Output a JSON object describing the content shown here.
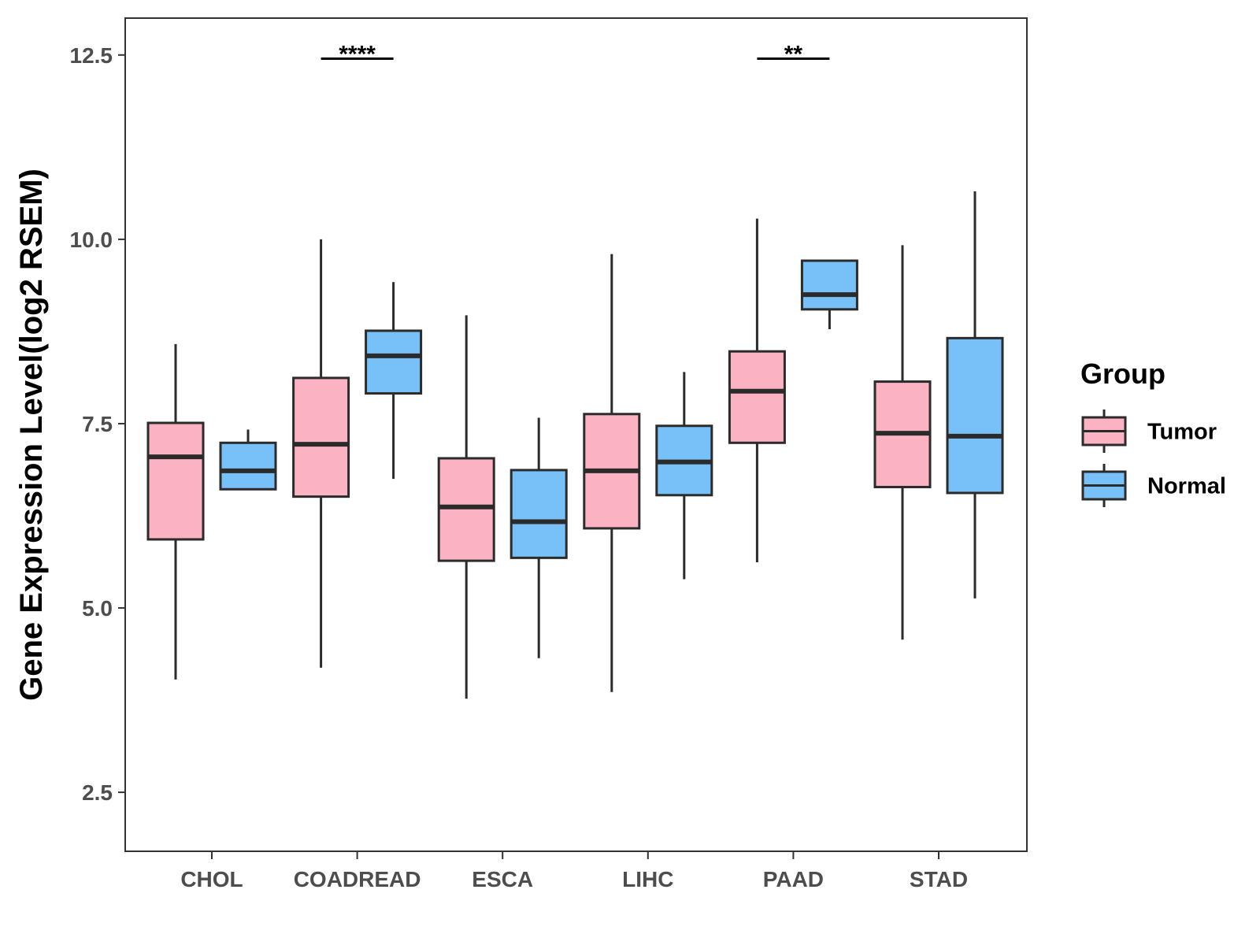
{
  "chart_data": {
    "type": "boxplot",
    "title": "",
    "xlabel": "",
    "ylabel": "Gene Expression Level(log2 RSEM)",
    "ylim": [
      1.7,
      13.0
    ],
    "yticks": [
      "2.5",
      "5.0",
      "7.5",
      "10.0",
      "12.5"
    ],
    "ytick_values": [
      2.5,
      5.0,
      7.5,
      10.0,
      12.5
    ],
    "categories": [
      "CHOL",
      "COADREAD",
      "ESCA",
      "LIHC",
      "PAAD",
      "STAD"
    ],
    "legend": {
      "title": "Group",
      "position": "right",
      "items": [
        {
          "label": "Tumor",
          "color": "#FBB2C2"
        },
        {
          "label": "Normal",
          "color": "#78C1F8"
        }
      ]
    },
    "series": [
      {
        "name": "Tumor",
        "color": "#FBB2C2",
        "boxes": [
          {
            "category": "CHOL",
            "whisker_low": 4.03,
            "q1": 5.93,
            "median": 7.05,
            "q3": 7.51,
            "whisker_high": 8.58
          },
          {
            "category": "COADREAD",
            "whisker_low": 4.19,
            "q1": 6.51,
            "median": 7.22,
            "q3": 8.12,
            "whisker_high": 10.0
          },
          {
            "category": "ESCA",
            "whisker_low": 3.77,
            "q1": 5.64,
            "median": 6.37,
            "q3": 7.03,
            "whisker_high": 8.97
          },
          {
            "category": "LIHC",
            "whisker_low": 3.86,
            "q1": 6.08,
            "median": 6.86,
            "q3": 7.63,
            "whisker_high": 9.8
          },
          {
            "category": "PAAD",
            "whisker_low": 5.62,
            "q1": 7.24,
            "median": 7.94,
            "q3": 8.48,
            "whisker_high": 10.28
          },
          {
            "category": "STAD",
            "whisker_low": 4.57,
            "q1": 6.64,
            "median": 7.37,
            "q3": 8.07,
            "whisker_high": 9.92
          }
        ]
      },
      {
        "name": "Normal",
        "color": "#78C1F8",
        "boxes": [
          {
            "category": "CHOL",
            "whisker_low": 6.61,
            "q1": 6.61,
            "median": 6.86,
            "q3": 7.24,
            "whisker_high": 7.42
          },
          {
            "category": "COADREAD",
            "whisker_low": 6.75,
            "q1": 7.91,
            "median": 8.42,
            "q3": 8.76,
            "whisker_high": 9.42
          },
          {
            "category": "ESCA",
            "whisker_low": 4.32,
            "q1": 5.68,
            "median": 6.17,
            "q3": 6.87,
            "whisker_high": 7.58
          },
          {
            "category": "LIHC",
            "whisker_low": 5.39,
            "q1": 6.53,
            "median": 6.98,
            "q3": 7.47,
            "whisker_high": 8.2
          },
          {
            "category": "PAAD",
            "whisker_low": 8.78,
            "q1": 9.05,
            "median": 9.25,
            "q3": 9.71,
            "whisker_high": 9.71
          },
          {
            "category": "STAD",
            "whisker_low": 5.13,
            "q1": 6.56,
            "median": 7.33,
            "q3": 8.66,
            "whisker_high": 10.65
          }
        ]
      }
    ],
    "annotations": [
      {
        "category": "COADREAD",
        "label": "****",
        "y": 12.45
      },
      {
        "category": "PAAD",
        "label": "**",
        "y": 12.45
      }
    ]
  }
}
